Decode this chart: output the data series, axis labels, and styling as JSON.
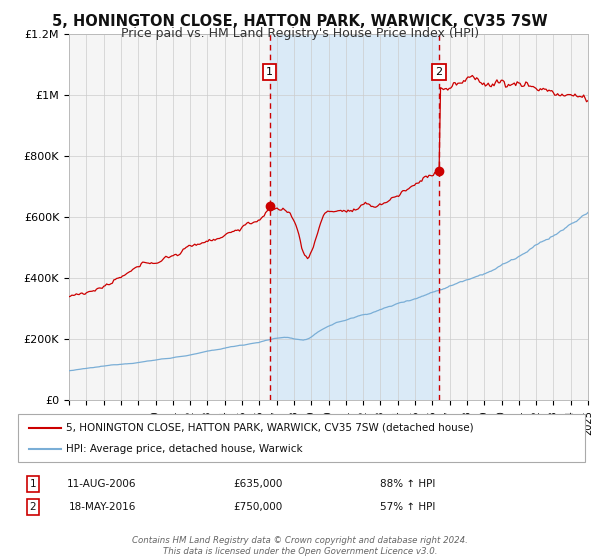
{
  "title": "5, HONINGTON CLOSE, HATTON PARK, WARWICK, CV35 7SW",
  "subtitle": "Price paid vs. HM Land Registry's House Price Index (HPI)",
  "title_fontsize": 10.5,
  "subtitle_fontsize": 9,
  "background_color": "#ffffff",
  "plot_bg_color": "#f5f5f5",
  "shaded_region_color": "#daeaf7",
  "grid_color": "#cccccc",
  "red_line_color": "#cc0000",
  "blue_line_color": "#7aaed6",
  "marker_color": "#cc0000",
  "dashed_line_color": "#cc0000",
  "transaction1": {
    "date_num": 2006.6,
    "price": 635000,
    "label": "1",
    "date_str": "11-AUG-2006",
    "amount_str": "£635,000",
    "hpi_str": "88% ↑ HPI"
  },
  "transaction2": {
    "date_num": 2016.38,
    "price": 750000,
    "label": "2",
    "date_str": "18-MAY-2016",
    "amount_str": "£750,000",
    "hpi_str": "57% ↑ HPI"
  },
  "legend1": "5, HONINGTON CLOSE, HATTON PARK, WARWICK, CV35 7SW (detached house)",
  "legend2": "HPI: Average price, detached house, Warwick",
  "footer": "Contains HM Land Registry data © Crown copyright and database right 2024.\nThis data is licensed under the Open Government Licence v3.0.",
  "ylim": [
    0,
    1200000
  ],
  "xlim_start": 1995,
  "xlim_end": 2025,
  "yticks": [
    0,
    200000,
    400000,
    600000,
    800000,
    1000000,
    1200000
  ],
  "ytick_labels": [
    "£0",
    "£200K",
    "£400K",
    "£600K",
    "£800K",
    "£1M",
    "£1.2M"
  ]
}
